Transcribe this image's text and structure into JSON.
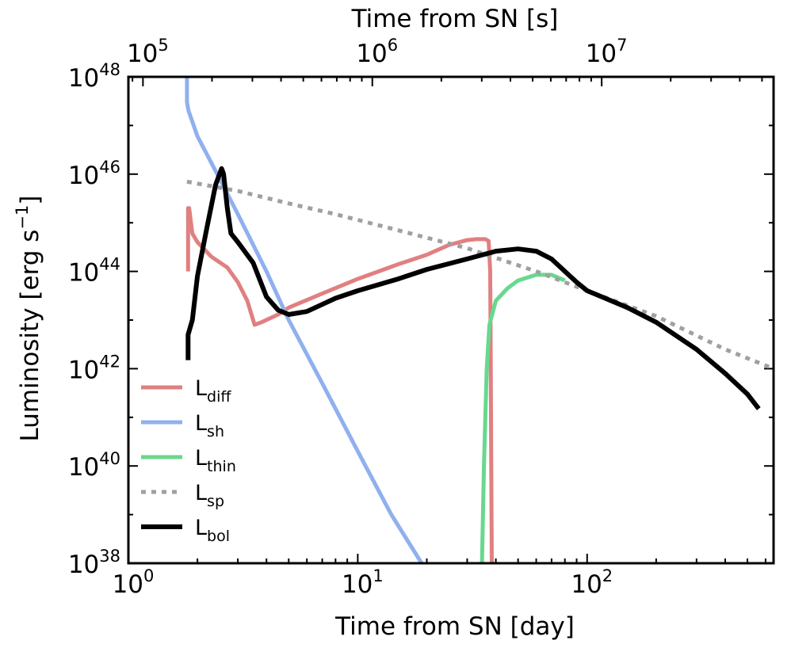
{
  "chart_data": {
    "type": "line",
    "xscale": "log",
    "yscale": "log",
    "xlabel": "Time from SN [day]",
    "ylabel_main": "Luminosity [erg s",
    "ylabel_sup": "−1",
    "ylabel_close": "]",
    "top_xlabel": "Time from SN [s]",
    "xlim": [
      1,
      650
    ],
    "ylim": [
      1e+38,
      1e+48
    ],
    "x_ticks": [
      {
        "value": 1,
        "base": "10",
        "exp": "0"
      },
      {
        "value": 10,
        "base": "10",
        "exp": "1"
      },
      {
        "value": 100,
        "base": "10",
        "exp": "2"
      }
    ],
    "y_ticks": [
      {
        "value": 1e+38,
        "base": "10",
        "exp": "38"
      },
      {
        "value": 1e+40,
        "base": "10",
        "exp": "40"
      },
      {
        "value": 1e+42,
        "base": "10",
        "exp": "42"
      },
      {
        "value": 1e+44,
        "base": "10",
        "exp": "44"
      },
      {
        "value": 1e+46,
        "base": "10",
        "exp": "46"
      },
      {
        "value": 1e+48,
        "base": "10",
        "exp": "48"
      }
    ],
    "top_ticks": [
      {
        "value_s": 100000.0,
        "base": "10",
        "exp": "5"
      },
      {
        "value_s": 1000000.0,
        "base": "10",
        "exp": "6"
      },
      {
        "value_s": 10000000.0,
        "base": "10",
        "exp": "7"
      }
    ],
    "seconds_per_day": 86400,
    "series": [
      {
        "name": "L_diff",
        "label_main": "L",
        "label_sub": "diff",
        "color": "#e08080",
        "dash": "solid",
        "points": [
          [
            1.82,
            1e+44
          ],
          [
            1.82,
            2e+45
          ],
          [
            1.84,
            2e+45
          ],
          [
            1.9,
            6e+44
          ],
          [
            2.0,
            4e+44
          ],
          [
            2.3,
            2e+44
          ],
          [
            2.7,
            1.2e+44
          ],
          [
            3.0,
            6e+43
          ],
          [
            3.3,
            2.5e+43
          ],
          [
            3.55,
            8e+42
          ],
          [
            3.8,
            9e+42
          ],
          [
            4.5,
            1.3e+43
          ],
          [
            5,
            1.8e+43
          ],
          [
            7,
            3.5e+43
          ],
          [
            10,
            7e+43
          ],
          [
            15,
            1.4e+44
          ],
          [
            20,
            2.2e+44
          ],
          [
            25,
            3.5e+44
          ],
          [
            30,
            4.4e+44
          ],
          [
            33,
            4.6e+44
          ],
          [
            36,
            4.6e+44
          ],
          [
            37.2,
            4.2e+44
          ],
          [
            37.8,
            1e+44
          ],
          [
            38,
            1e+42
          ],
          [
            38.2,
            1e+40
          ],
          [
            38.4,
            1e+38
          ]
        ]
      },
      {
        "name": "L_sh",
        "label_main": "L",
        "label_sub": "sh",
        "color": "#90b0ee",
        "dash": "solid",
        "points": [
          [
            1.8,
            1e+48
          ],
          [
            1.8,
            3e+47
          ],
          [
            1.83,
            2e+47
          ],
          [
            2.0,
            6e+46
          ],
          [
            2.5,
            8e+45
          ],
          [
            3.0,
            1.5e+45
          ],
          [
            4.0,
            1e+44
          ],
          [
            5.0,
            1e+43
          ],
          [
            7.0,
            5e+41
          ],
          [
            10,
            2e+40
          ],
          [
            14,
            1e+39
          ],
          [
            19,
            1e+38
          ]
        ]
      },
      {
        "name": "L_thin",
        "label_main": "L",
        "label_sub": "thin",
        "color": "#68d88e",
        "dash": "solid",
        "points": [
          [
            34.8,
            1e+38
          ],
          [
            35.5,
            1e+40
          ],
          [
            36.5,
            1e+42
          ],
          [
            37.5,
            8e+42
          ],
          [
            40,
            2.5e+43
          ],
          [
            45,
            4.5e+43
          ],
          [
            50,
            6.5e+43
          ],
          [
            60,
            8.5e+43
          ],
          [
            70,
            8.5e+43
          ],
          [
            80,
            6.5e+43
          ]
        ]
      },
      {
        "name": "L_sp",
        "label_main": "L",
        "label_sub": "sp",
        "color": "#a0a0a0",
        "dash": "dotted",
        "points": [
          [
            1.8,
            7e+45
          ],
          [
            3,
            4.5e+45
          ],
          [
            5,
            2.5e+45
          ],
          [
            8,
            1.5e+45
          ],
          [
            15,
            7e+44
          ],
          [
            30,
            3e+44
          ],
          [
            60,
            1e+44
          ],
          [
            100,
            4e+43
          ],
          [
            200,
            1.2e+43
          ],
          [
            400,
            2.5e+42
          ],
          [
            650,
            1e+42
          ]
        ]
      },
      {
        "name": "L_bol",
        "label_main": "L",
        "label_sub": "bol",
        "color": "#000000",
        "dash": "solid",
        "points": [
          [
            1.82,
            1.5e+42
          ],
          [
            1.82,
            5e+42
          ],
          [
            1.9,
            1e+43
          ],
          [
            2.0,
            8e+43
          ],
          [
            2.2,
            8e+44
          ],
          [
            2.4,
            6e+45
          ],
          [
            2.55,
            1.3e+46
          ],
          [
            2.6,
            1e+46
          ],
          [
            2.7,
            2e+45
          ],
          [
            2.8,
            6e+44
          ],
          [
            3.0,
            4e+44
          ],
          [
            3.5,
            1.5e+44
          ],
          [
            4.0,
            3e+43
          ],
          [
            4.5,
            1.6e+43
          ],
          [
            5,
            1.3e+43
          ],
          [
            6,
            1.5e+43
          ],
          [
            8,
            2.8e+43
          ],
          [
            10,
            4e+43
          ],
          [
            15,
            7e+43
          ],
          [
            20,
            1.1e+44
          ],
          [
            30,
            1.8e+44
          ],
          [
            40,
            2.6e+44
          ],
          [
            50,
            2.9e+44
          ],
          [
            60,
            2.6e+44
          ],
          [
            70,
            1.8e+44
          ],
          [
            80,
            1e+44
          ],
          [
            90,
            6e+43
          ],
          [
            100,
            4e+43
          ],
          [
            150,
            1.8e+43
          ],
          [
            200,
            9e+42
          ],
          [
            300,
            2.5e+42
          ],
          [
            400,
            8e+41
          ],
          [
            500,
            3e+41
          ],
          [
            560,
            1.5e+41
          ]
        ]
      }
    ],
    "legend_position": "lower-left"
  }
}
